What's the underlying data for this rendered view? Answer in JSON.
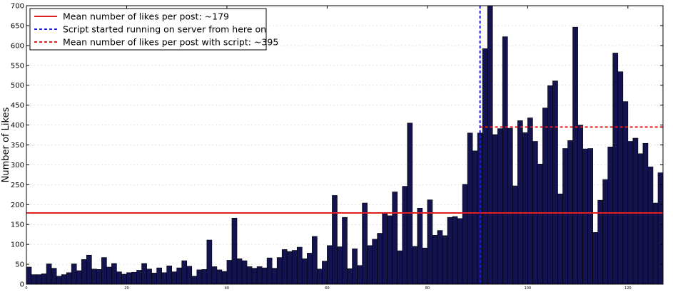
{
  "chart_data": {
    "type": "bar",
    "ylabel": "Number of Likes",
    "ylim": [
      0,
      700
    ],
    "xlim": [
      0,
      127
    ],
    "y_ticks": [
      0,
      50,
      100,
      150,
      200,
      250,
      300,
      350,
      400,
      450,
      500,
      550,
      600,
      650,
      700
    ],
    "x_ticks": [
      0,
      20,
      40,
      60,
      80,
      100,
      120
    ],
    "grid": "horizontal-dashed",
    "legend_position": "top-left",
    "bar_color": "#13134f",
    "values": [
      43,
      24,
      24,
      26,
      51,
      40,
      20,
      24,
      29,
      51,
      34,
      62,
      73,
      38,
      37,
      67,
      43,
      52,
      31,
      25,
      29,
      30,
      35,
      52,
      38,
      28,
      41,
      29,
      46,
      31,
      41,
      59,
      45,
      20,
      36,
      37,
      111,
      44,
      36,
      32,
      60,
      166,
      64,
      59,
      44,
      40,
      44,
      41,
      66,
      40,
      67,
      87,
      82,
      85,
      93,
      64,
      78,
      120,
      38,
      58,
      97,
      223,
      94,
      168,
      39,
      89,
      47,
      204,
      97,
      113,
      128,
      179,
      172,
      232,
      84,
      246,
      405,
      95,
      191,
      91,
      212,
      123,
      135,
      122,
      168,
      170,
      165,
      251,
      380,
      335,
      380,
      592,
      700,
      376,
      391,
      622,
      392,
      247,
      411,
      381,
      418,
      359,
      302,
      443,
      499,
      511,
      227,
      341,
      361,
      646,
      400,
      340,
      341,
      130,
      211,
      263,
      345,
      581,
      534,
      459,
      359,
      367,
      328,
      354,
      295,
      204,
      280
    ],
    "reference_lines": [
      {
        "label": "Mean number of likes per post: ~179",
        "orientation": "horizontal",
        "y": 179,
        "x_start": 0,
        "x_end": 127,
        "style": "solid",
        "color": "#e02020"
      },
      {
        "label": "Script started running on server from here on",
        "orientation": "vertical",
        "x": 90.5,
        "style": "dashed",
        "color": "#1a1ae0"
      },
      {
        "label": "Mean number of likes per post with script: ~395",
        "orientation": "horizontal",
        "y": 395,
        "x_start": 90.5,
        "x_end": 127,
        "style": "dashed",
        "color": "#e02020"
      }
    ]
  }
}
